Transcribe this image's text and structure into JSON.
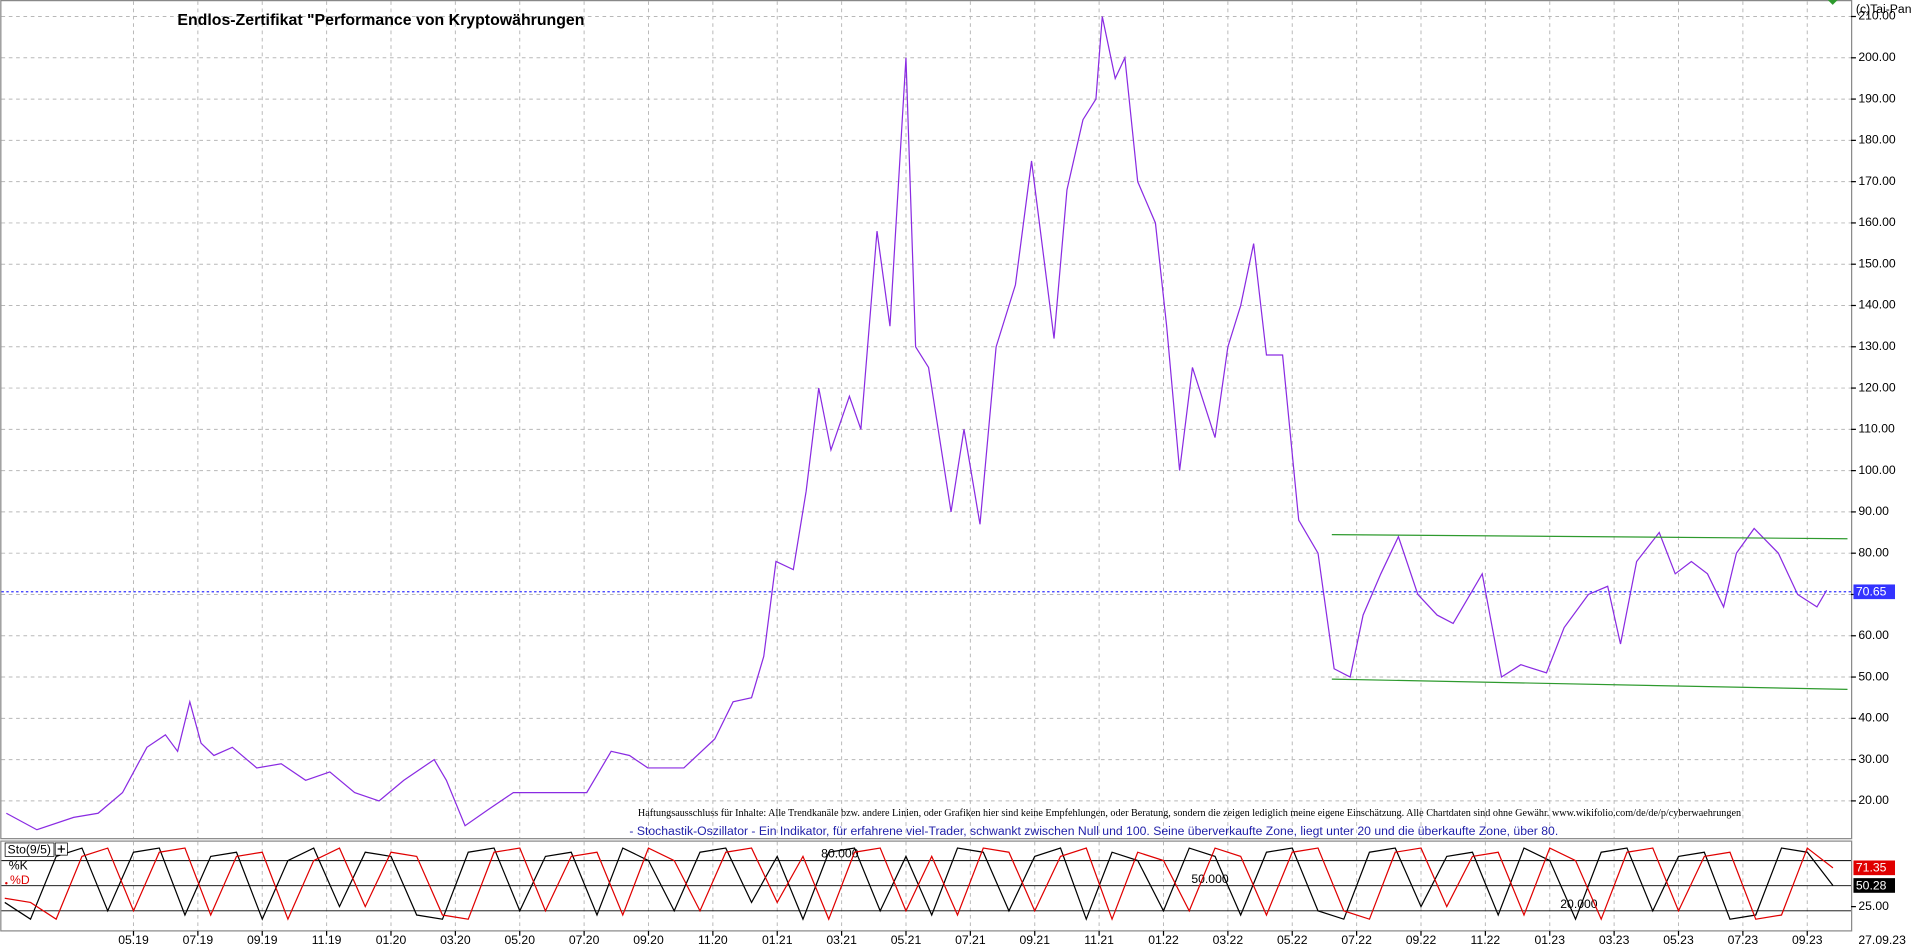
{
  "chart_data": [
    {
      "type": "line",
      "title": "Endlos-Zertifikat \"Performance von Kryptowährungen",
      "copyright": "(c)Tai-Pan",
      "disclaimer": "Haftungsausschluss für Inhalte: Alle Trendkanäle bzw. andere Linien, oder Grafiken hier sind keine Empfehlungen, oder Beratung, sondern die zeigen lediglich meine eigene Einschätzung. Alle Chartdaten sind ohne Gewähr.  www.wikifolio.com/de/de/p/cyberwaehrungen",
      "indicator_note": "- Stochastik-Oszillator - Ein Indikator, für erfahrene viel-Trader, schwankt zwischen Null und 100. Seine überverkaufte Zone, liegt unter 20 und die überkaufte Zone, über 80.",
      "end_date": "27.09.23",
      "grid": true,
      "xlim": [
        -0.14,
        57.36
      ],
      "xticks": [
        {
          "value": 4,
          "label": "05.19"
        },
        {
          "value": 6,
          "label": "07.19"
        },
        {
          "value": 8,
          "label": "09.19"
        },
        {
          "value": 10,
          "label": "11.19"
        },
        {
          "value": 12,
          "label": "01.20"
        },
        {
          "value": 14,
          "label": "03.20"
        },
        {
          "value": 16,
          "label": "05.20"
        },
        {
          "value": 18,
          "label": "07.20"
        },
        {
          "value": 20,
          "label": "09.20"
        },
        {
          "value": 22,
          "label": "11.20"
        },
        {
          "value": 24,
          "label": "01.21"
        },
        {
          "value": 26,
          "label": "03.21"
        },
        {
          "value": 28,
          "label": "05.21"
        },
        {
          "value": 30,
          "label": "07.21"
        },
        {
          "value": 32,
          "label": "09.21"
        },
        {
          "value": 34,
          "label": "11.21"
        },
        {
          "value": 36,
          "label": "01.22"
        },
        {
          "value": 38,
          "label": "03.22"
        },
        {
          "value": 40,
          "label": "05.22"
        },
        {
          "value": 42,
          "label": "07.22"
        },
        {
          "value": 44,
          "label": "09.22"
        },
        {
          "value": 46,
          "label": "11.22"
        },
        {
          "value": 48,
          "label": "01.23"
        },
        {
          "value": 50,
          "label": "03.23"
        },
        {
          "value": 52,
          "label": "05.23"
        },
        {
          "value": 54,
          "label": "07.23"
        },
        {
          "value": 56,
          "label": "09.23"
        }
      ],
      "ylim": [
        11,
        214
      ],
      "yticks": [
        {
          "value": 20,
          "label": "20.00"
        },
        {
          "value": 30,
          "label": "30.00"
        },
        {
          "value": 40,
          "label": "40.00"
        },
        {
          "value": 50,
          "label": "50.00"
        },
        {
          "value": 60,
          "label": "60.00"
        },
        {
          "value": 70,
          "label": "70.00"
        },
        {
          "value": 80,
          "label": "80.00"
        },
        {
          "value": 90,
          "label": "90.00"
        },
        {
          "value": 100,
          "label": "100.00"
        },
        {
          "value": 110,
          "label": "110.00"
        },
        {
          "value": 120,
          "label": "120.00"
        },
        {
          "value": 130,
          "label": "130.00"
        },
        {
          "value": 140,
          "label": "140.00"
        },
        {
          "value": 150,
          "label": "150.00"
        },
        {
          "value": 160,
          "label": "160.00"
        },
        {
          "value": 170,
          "label": "170.00"
        },
        {
          "value": 180,
          "label": "180.00"
        },
        {
          "value": 190,
          "label": "190.00"
        },
        {
          "value": 200,
          "label": "200.00"
        },
        {
          "value": 210,
          "label": "210.00"
        }
      ],
      "series": [
        {
          "color": "#8a2be2",
          "x": [
            0.05,
            1.0,
            2.14,
            2.9,
            3.66,
            4.42,
            4.99,
            5.37,
            5.75,
            6.1,
            6.5,
            7.07,
            7.83,
            8.59,
            9.35,
            10.1,
            10.87,
            11.63,
            12.4,
            13.34,
            13.72,
            14.3,
            15.04,
            15.8,
            16.94,
            18.08,
            18.84,
            19.41,
            19.98,
            21.1,
            22.06,
            22.63,
            23.2,
            23.58,
            23.96,
            24.5,
            24.9,
            25.29,
            25.67,
            26.24,
            26.6,
            27.1,
            27.5,
            28.0,
            28.3,
            28.7,
            29.4,
            29.8,
            30.3,
            30.8,
            31.4,
            31.9,
            32.6,
            33.0,
            33.5,
            33.9,
            34.1,
            34.5,
            34.8,
            35.2,
            35.75,
            36.1,
            36.5,
            36.9,
            37.6,
            38.0,
            38.4,
            38.8,
            39.2,
            39.7,
            40.2,
            40.8,
            41.3,
            41.8,
            42.2,
            42.75,
            43.3,
            43.9,
            44.5,
            45.0,
            45.9,
            46.5,
            47.1,
            47.9,
            48.45,
            49.2,
            49.8,
            50.2,
            50.7,
            51.4,
            51.9,
            52.4,
            52.9,
            53.4,
            53.8,
            54.35,
            55.1,
            55.7,
            56.3,
            56.6
          ],
          "values": [
            17,
            13,
            16,
            17,
            22,
            33,
            36,
            32,
            44,
            34,
            31,
            33,
            28,
            29,
            25,
            27,
            22,
            20,
            25,
            30,
            25,
            14,
            18,
            22,
            22,
            22,
            32,
            31,
            28,
            28,
            35,
            44,
            45,
            55,
            78,
            76,
            95,
            120,
            105,
            118,
            110,
            158,
            135,
            200,
            130,
            125,
            90,
            110,
            87,
            130,
            145,
            175,
            132,
            168,
            185,
            190,
            210,
            195,
            200,
            170,
            160,
            135,
            100,
            125,
            108,
            130,
            140,
            155,
            128,
            128,
            88,
            80,
            52,
            50,
            65,
            75,
            84,
            70,
            65,
            63,
            75,
            50,
            53,
            51,
            62,
            70,
            72,
            58,
            78,
            85,
            75,
            78,
            75,
            67,
            80,
            86,
            80,
            70,
            67,
            71
          ]
        }
      ],
      "last_value": 70.65,
      "last_value_color": "#3333ff",
      "trendlines": [
        {
          "color": "#2e9a2e",
          "x": [
            41.23,
            57.25
          ],
          "values": [
            84.5,
            83.5
          ]
        },
        {
          "color": "#2e9a2e",
          "x": [
            41.23,
            57.25
          ],
          "values": [
            49.5,
            47
          ]
        }
      ]
    },
    {
      "type": "line",
      "label": "Sto(9/5)",
      "ylim": [
        -4,
        104
      ],
      "yticks": [
        {
          "value": 25,
          "label": "25.00"
        }
      ],
      "levels": [
        {
          "value": 80,
          "label": "80.000"
        },
        {
          "value": 50,
          "label": "50.000"
        },
        {
          "value": 20,
          "label": "20.000"
        }
      ],
      "x": [
        0,
        0.8,
        1.6,
        2.4,
        3.2,
        4,
        4.8,
        5.6,
        6.4,
        7.2,
        8,
        8.8,
        9.6,
        10.4,
        11.2,
        12,
        12.8,
        13.6,
        14.4,
        15.2,
        16,
        16.8,
        17.6,
        18.4,
        19.2,
        20,
        20.8,
        21.6,
        22.4,
        23.2,
        24,
        24.8,
        25.6,
        26.4,
        27.2,
        28,
        28.8,
        29.6,
        30.4,
        31.2,
        32,
        32.8,
        33.6,
        34.4,
        35.2,
        36,
        36.8,
        37.6,
        38.4,
        39.2,
        40,
        40.8,
        41.6,
        42.4,
        43.2,
        44,
        44.8,
        45.6,
        46.4,
        47.2,
        48,
        48.8,
        49.6,
        50.4,
        51.2,
        52,
        52.8,
        53.6,
        54.4,
        55.2,
        56,
        56.8
      ],
      "series": [
        {
          "name": "%K",
          "color": "#000000",
          "values": [
            30,
            10,
            85,
            95,
            20,
            90,
            95,
            15,
            85,
            90,
            10,
            80,
            95,
            25,
            90,
            85,
            15,
            10,
            90,
            95,
            20,
            85,
            90,
            15,
            95,
            80,
            20,
            90,
            95,
            30,
            85,
            10,
            90,
            95,
            20,
            85,
            15,
            95,
            90,
            20,
            85,
            95,
            10,
            90,
            80,
            20,
            95,
            85,
            15,
            90,
            95,
            20,
            10,
            90,
            95,
            25,
            85,
            90,
            15,
            95,
            80,
            10,
            90,
            95,
            20,
            85,
            90,
            10,
            15,
            95,
            90,
            50.28
          ]
        },
        {
          "name": "%D",
          "color": "#e00000",
          "values": [
            35,
            30,
            10,
            85,
            95,
            20,
            90,
            95,
            15,
            85,
            90,
            10,
            80,
            95,
            25,
            90,
            85,
            15,
            10,
            90,
            95,
            20,
            85,
            90,
            15,
            95,
            80,
            20,
            90,
            95,
            30,
            85,
            10,
            90,
            95,
            20,
            85,
            15,
            95,
            90,
            20,
            85,
            95,
            10,
            90,
            80,
            20,
            95,
            85,
            15,
            90,
            95,
            20,
            10,
            90,
            95,
            25,
            85,
            90,
            15,
            95,
            80,
            10,
            90,
            95,
            20,
            85,
            90,
            10,
            15,
            95,
            71.35
          ]
        }
      ]
    }
  ]
}
